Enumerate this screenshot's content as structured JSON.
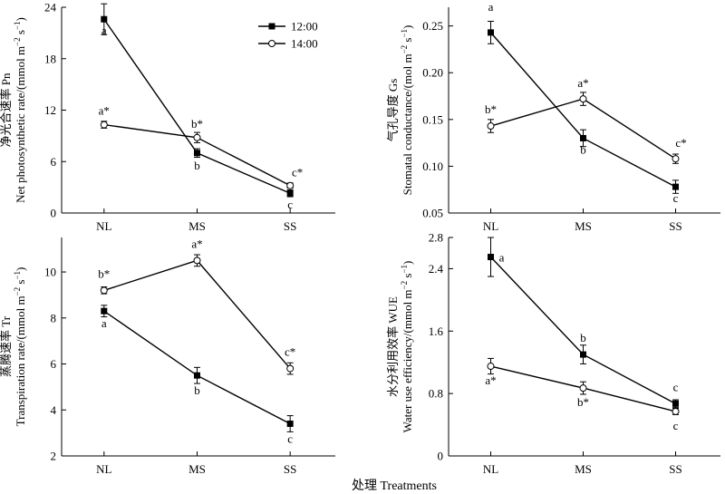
{
  "figure": {
    "xlabel": "处理 Treatments",
    "legend": {
      "placement": "top-right of top-left panel",
      "entries": [
        {
          "label": "12:00",
          "marker": "filled-square"
        },
        {
          "label": "14:00",
          "marker": "open-circle"
        }
      ]
    }
  },
  "chart_data": [
    {
      "type": "line",
      "ylabel": "净光合速率 Pn",
      "ylabel_en": "Net photosynthetic rate/(mmol m",
      "categories": [
        "NL",
        "MS",
        "SS"
      ],
      "ylim": [
        0,
        24
      ],
      "yticks": [
        "0",
        "6",
        "12",
        "18",
        "24"
      ],
      "series": [
        {
          "name": "12:00",
          "values": [
            22.6,
            7.0,
            2.3
          ],
          "errors": [
            1.8,
            0.5,
            0.4
          ],
          "labels": [
            "a",
            "b",
            "c"
          ]
        },
        {
          "name": "14:00",
          "values": [
            10.3,
            8.8,
            3.2
          ],
          "errors": [
            0.4,
            0.6,
            0.3
          ],
          "labels": [
            "a*",
            "b*",
            "c*"
          ]
        }
      ]
    },
    {
      "type": "line",
      "ylabel": "气孔导度 Gs",
      "ylabel_en": "Stomatal conductance/(mol m",
      "categories": [
        "NL",
        "MS",
        "SS"
      ],
      "ylim": [
        0.05,
        0.27
      ],
      "yticks": [
        "0.05",
        "0.10",
        "0.15",
        "0.20",
        "0.25"
      ],
      "series": [
        {
          "name": "12:00",
          "values": [
            0.243,
            0.13,
            0.078
          ],
          "errors": [
            0.012,
            0.009,
            0.007
          ],
          "labels": [
            "a",
            "b",
            "c"
          ]
        },
        {
          "name": "14:00",
          "values": [
            0.143,
            0.172,
            0.108
          ],
          "errors": [
            0.007,
            0.007,
            0.005
          ],
          "labels": [
            "b*",
            "a*",
            "c*"
          ]
        }
      ]
    },
    {
      "type": "line",
      "ylabel": "蒸腾速率 Tr",
      "ylabel_en": "Transpiration rate/(mmol m",
      "categories": [
        "NL",
        "MS",
        "SS"
      ],
      "ylim": [
        2,
        11.5
      ],
      "yticks": [
        "2",
        "4",
        "6",
        "8",
        "10"
      ],
      "series": [
        {
          "name": "12:00",
          "values": [
            8.3,
            5.5,
            3.4
          ],
          "errors": [
            0.25,
            0.35,
            0.35
          ],
          "labels": [
            "a",
            "b",
            "c"
          ]
        },
        {
          "name": "14:00",
          "values": [
            9.2,
            10.5,
            5.8
          ],
          "errors": [
            0.15,
            0.25,
            0.25
          ],
          "labels": [
            "b*",
            "a*",
            "c*"
          ]
        }
      ]
    },
    {
      "type": "line",
      "ylabel": "水分利用效率 WUE",
      "ylabel_en": "Water use efficiency/(mmol m",
      "categories": [
        "NL",
        "MS",
        "SS"
      ],
      "ylim": [
        0,
        2.8
      ],
      "yticks": [
        "0",
        "0.8",
        "1.6",
        "2.4",
        "2.8"
      ],
      "series": [
        {
          "name": "12:00",
          "values": [
            2.55,
            1.3,
            0.67
          ],
          "errors": [
            0.25,
            0.12,
            0.05
          ],
          "labels": [
            "a",
            "b",
            "c"
          ]
        },
        {
          "name": "14:00",
          "values": [
            1.15,
            0.87,
            0.57
          ],
          "errors": [
            0.1,
            0.08,
            0.04
          ],
          "labels": [
            "a*",
            "b*",
            "c"
          ]
        }
      ]
    }
  ]
}
